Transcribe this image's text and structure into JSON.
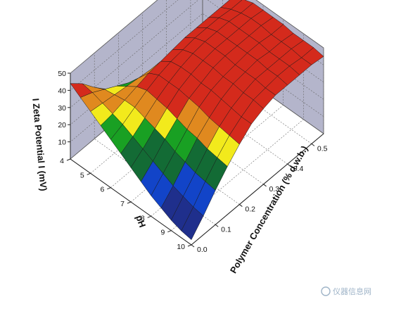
{
  "chart_data": {
    "type": "surface3d",
    "title": "",
    "xlabel": "pH",
    "ylabel": "Polymer Concentration (% d.w.b.)",
    "zlabel": "I Zeta Potential I (mV)",
    "x_ticks": [
      "4",
      "5",
      "6",
      "7",
      "8",
      "9",
      "10"
    ],
    "y_ticks": [
      "0.0",
      "0.1",
      "0.2",
      "0.3",
      "0.4",
      "0.5"
    ],
    "z_ticks": [
      "10",
      "20",
      "30",
      "40",
      "50"
    ],
    "xlim": [
      4,
      10
    ],
    "ylim": [
      0,
      0.55
    ],
    "zlim": [
      0,
      50
    ],
    "ph": [
      4,
      4.5,
      5,
      5.5,
      6,
      6.5,
      7,
      7.5,
      8,
      8.5,
      9,
      9.5,
      10
    ],
    "conc": [
      0,
      0.05,
      0.1,
      0.15,
      0.2,
      0.25,
      0.3,
      0.35,
      0.4,
      0.45,
      0.5,
      0.55
    ],
    "z": [
      [
        44,
        38,
        30,
        23,
        18,
        14,
        11,
        9,
        7,
        6,
        5,
        4
      ],
      [
        40,
        37,
        33,
        29,
        25,
        22,
        19,
        17,
        15,
        14,
        13,
        12
      ],
      [
        36,
        35,
        34,
        33,
        32,
        31,
        30,
        29,
        28,
        27,
        26,
        25
      ],
      [
        32,
        33,
        35,
        37,
        39,
        40,
        41,
        42,
        42,
        42,
        42,
        42
      ],
      [
        28,
        31,
        35,
        39,
        42,
        44,
        45,
        46,
        46,
        46,
        45,
        45
      ],
      [
        24,
        28,
        33,
        38,
        42,
        45,
        47,
        48,
        48,
        48,
        47,
        47
      ],
      [
        20,
        25,
        31,
        37,
        42,
        45,
        47,
        48,
        48,
        48,
        48,
        47
      ],
      [
        16,
        22,
        29,
        35,
        41,
        44,
        47,
        48,
        48,
        48,
        48,
        47
      ],
      [
        12,
        19,
        26,
        33,
        40,
        44,
        46,
        47,
        48,
        48,
        47,
        47
      ],
      [
        9,
        16,
        24,
        32,
        38,
        43,
        46,
        47,
        48,
        47,
        47,
        46
      ],
      [
        6,
        14,
        22,
        30,
        37,
        42,
        45,
        47,
        47,
        47,
        47,
        46
      ],
      [
        4,
        12,
        21,
        29,
        36,
        41,
        45,
        46,
        47,
        47,
        46,
        46
      ],
      [
        3,
        11,
        20,
        28,
        35,
        41,
        44,
        46,
        46,
        46,
        46,
        45
      ]
    ],
    "color_bands": [
      {
        "max": 12,
        "color": "#1f2f8c"
      },
      {
        "max": 20,
        "color": "#1244c8"
      },
      {
        "max": 27,
        "color": "#136b35"
      },
      {
        "max": 31,
        "color": "#19a023"
      },
      {
        "max": 34,
        "color": "#f2ea1c"
      },
      {
        "max": 38,
        "color": "#e0891f"
      },
      {
        "max": 100,
        "color": "#d42a1c"
      }
    ],
    "wall_color": "#b4b5cb",
    "floor_color": "#ffffff",
    "grid": true
  },
  "watermark": "仪器信息网"
}
